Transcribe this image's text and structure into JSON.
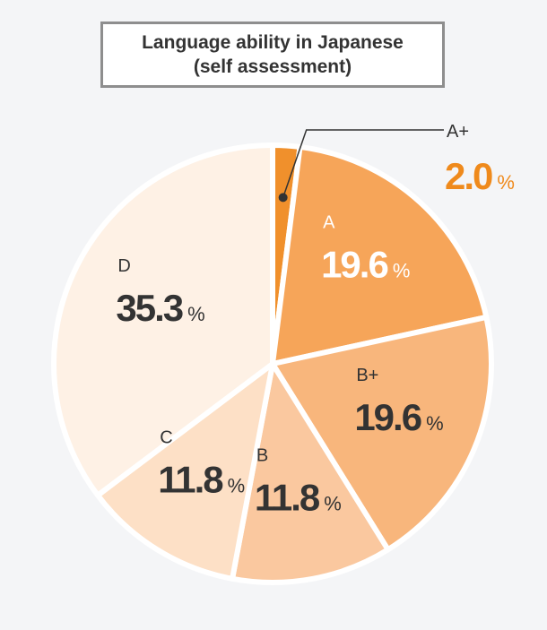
{
  "title": {
    "line1": "Language ability in Japanese",
    "line2": "(self assessment)"
  },
  "chart_data": {
    "type": "pie",
    "title": "Language ability in Japanese (self assessment)",
    "unit": "%",
    "slices": [
      {
        "label": "A+",
        "value": 2.0,
        "display": "2.0",
        "color": "#f0902c",
        "text_color": "#ef8a1c",
        "outside": true
      },
      {
        "label": "A",
        "value": 19.6,
        "display": "19.6",
        "color": "#f6a559",
        "text_color": "#ffffff"
      },
      {
        "label": "B+",
        "value": 19.6,
        "display": "19.6",
        "color": "#f8b67c",
        "text_color": "#333333"
      },
      {
        "label": "B",
        "value": 11.8,
        "display": "11.8",
        "color": "#fac89f",
        "text_color": "#333333"
      },
      {
        "label": "C",
        "value": 11.8,
        "display": "11.8",
        "color": "#fde0c6",
        "text_color": "#333333"
      },
      {
        "label": "D",
        "value": 35.3,
        "display": "35.3",
        "color": "#fef1e5",
        "text_color": "#333333"
      }
    ]
  }
}
